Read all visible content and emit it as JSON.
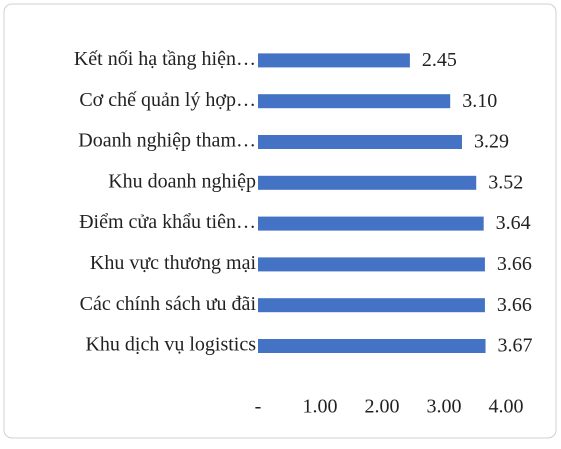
{
  "chart_data": {
    "type": "bar",
    "orientation": "horizontal",
    "categories": [
      "Kết nối hạ tầng hiện…",
      "Cơ chế quản lý hợp…",
      "Doanh nghiệp tham…",
      "Khu doanh nghiệp",
      "Điểm cửa khẩu tiên…",
      "Khu vực thương mại",
      "Các chính sách ưu đãi",
      "Khu dịch vụ logistics"
    ],
    "values": [
      2.45,
      3.1,
      3.29,
      3.52,
      3.64,
      3.66,
      3.66,
      3.67
    ],
    "value_labels": [
      "2.45",
      "3.10",
      "3.29",
      "3.52",
      "3.64",
      "3.66",
      "3.66",
      "3.67"
    ],
    "color": "#4472c4",
    "xlim": [
      0,
      4
    ],
    "xticks": [
      {
        "value": 0,
        "label": "-"
      },
      {
        "value": 1,
        "label": "1.00"
      },
      {
        "value": 2,
        "label": "2.00"
      },
      {
        "value": 3,
        "label": "3.00"
      },
      {
        "value": 4,
        "label": "4.00"
      }
    ],
    "grid": false
  }
}
